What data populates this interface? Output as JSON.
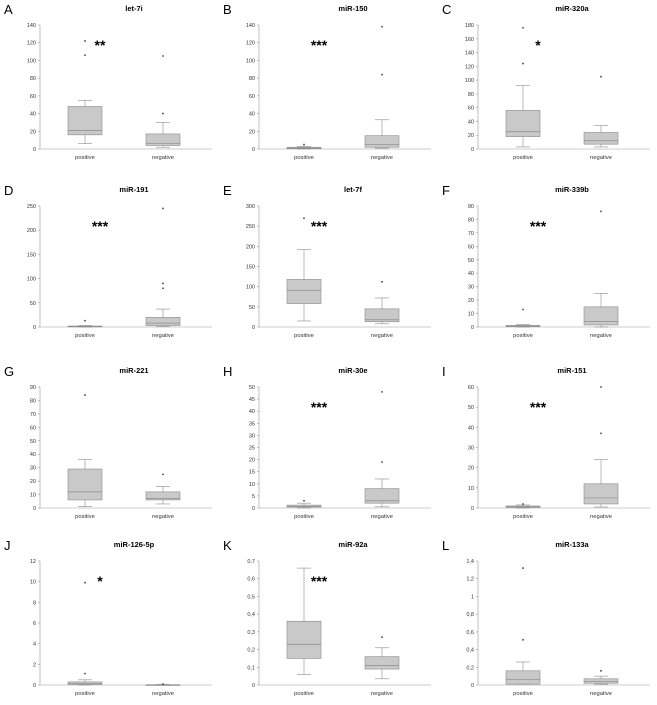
{
  "chart_data": [
    {
      "type": "box",
      "letter": "A",
      "title": "let-7i",
      "significance": "**",
      "categories": [
        "positive",
        "negative"
      ],
      "ylim": [
        0,
        140
      ],
      "yticks": [
        0,
        20,
        40,
        60,
        80,
        100,
        120,
        140
      ],
      "yticklabels": [
        "0",
        "20",
        "40",
        "60",
        "80",
        "100",
        "120",
        "140"
      ],
      "boxes": [
        {
          "name": "positive",
          "min": 6,
          "q1": 16,
          "median": 21,
          "q3": 48,
          "max": 55,
          "outliers": [
            106,
            122
          ]
        },
        {
          "name": "negative",
          "min": 2,
          "q1": 4,
          "median": 6,
          "q3": 17,
          "max": 30,
          "outliers": [
            40,
            105
          ]
        }
      ]
    },
    {
      "type": "box",
      "letter": "B",
      "title": "miR-150",
      "significance": "***",
      "categories": [
        "positive",
        "negative"
      ],
      "ylim": [
        0,
        140
      ],
      "yticks": [
        0,
        20,
        40,
        60,
        80,
        100,
        120,
        140
      ],
      "yticklabels": [
        "0",
        "20",
        "40",
        "60",
        "80",
        "100",
        "120",
        "140"
      ],
      "boxes": [
        {
          "name": "positive",
          "min": 0,
          "q1": 0.5,
          "median": 1,
          "q3": 2,
          "max": 3,
          "outliers": [
            5
          ]
        },
        {
          "name": "negative",
          "min": 1,
          "q1": 2,
          "median": 5,
          "q3": 15,
          "max": 33,
          "outliers": [
            84,
            138
          ]
        }
      ]
    },
    {
      "type": "box",
      "letter": "C",
      "title": "miR-320a",
      "significance": "*",
      "categories": [
        "positive",
        "negative"
      ],
      "ylim": [
        0,
        180
      ],
      "yticks": [
        0,
        20,
        40,
        60,
        80,
        100,
        120,
        140,
        160,
        180
      ],
      "yticklabels": [
        "0",
        "20",
        "40",
        "60",
        "80",
        "100",
        "120",
        "140",
        "160",
        "180"
      ],
      "boxes": [
        {
          "name": "positive",
          "min": 3,
          "q1": 18,
          "median": 25,
          "q3": 56,
          "max": 92,
          "outliers": [
            124,
            176
          ]
        },
        {
          "name": "negative",
          "min": 3,
          "q1": 7,
          "median": 12,
          "q3": 24,
          "max": 34,
          "outliers": [
            105
          ]
        }
      ]
    },
    {
      "type": "box",
      "letter": "D",
      "title": "miR-191",
      "significance": "***",
      "categories": [
        "positive",
        "negative"
      ],
      "ylim": [
        0,
        250
      ],
      "yticks": [
        0,
        50,
        100,
        150,
        200,
        250
      ],
      "yticklabels": [
        "0",
        "50",
        "100",
        "150",
        "200",
        "250"
      ],
      "boxes": [
        {
          "name": "positive",
          "min": 0,
          "q1": 0.5,
          "median": 1,
          "q3": 2,
          "max": 3,
          "outliers": [
            13
          ]
        },
        {
          "name": "negative",
          "min": 1,
          "q1": 3,
          "median": 8,
          "q3": 20,
          "max": 37,
          "outliers": [
            80,
            90,
            245
          ]
        }
      ]
    },
    {
      "type": "box",
      "letter": "E",
      "title": "let-7f",
      "significance": "***",
      "categories": [
        "positive",
        "negative"
      ],
      "ylim": [
        0,
        300
      ],
      "yticks": [
        0,
        50,
        100,
        150,
        200,
        250,
        300
      ],
      "yticklabels": [
        "0",
        "50",
        "100",
        "150",
        "200",
        "250",
        "300"
      ],
      "boxes": [
        {
          "name": "positive",
          "min": 15,
          "q1": 58,
          "median": 90,
          "q3": 118,
          "max": 192,
          "outliers": [
            270
          ]
        },
        {
          "name": "negative",
          "min": 8,
          "q1": 13,
          "median": 18,
          "q3": 45,
          "max": 72,
          "outliers": [
            112
          ]
        }
      ]
    },
    {
      "type": "box",
      "letter": "F",
      "title": "miR-339b",
      "significance": "***",
      "categories": [
        "positive",
        "negative"
      ],
      "ylim": [
        0,
        90
      ],
      "yticks": [
        0,
        10,
        20,
        30,
        40,
        50,
        60,
        70,
        80,
        90
      ],
      "yticklabels": [
        "0",
        "10",
        "20",
        "30",
        "40",
        "50",
        "60",
        "70",
        "80",
        "90"
      ],
      "boxes": [
        {
          "name": "positive",
          "min": 0,
          "q1": 0.3,
          "median": 0.7,
          "q3": 1.2,
          "max": 1.8,
          "outliers": [
            13
          ]
        },
        {
          "name": "negative",
          "min": 0,
          "q1": 1.5,
          "median": 4,
          "q3": 15,
          "max": 25,
          "outliers": [
            86
          ]
        }
      ]
    },
    {
      "type": "box",
      "letter": "G",
      "title": "miR-221",
      "significance": "",
      "categories": [
        "positive",
        "negative"
      ],
      "ylim": [
        0,
        90
      ],
      "yticks": [
        0,
        10,
        20,
        30,
        40,
        50,
        60,
        70,
        80,
        90
      ],
      "yticklabels": [
        "0",
        "10",
        "20",
        "30",
        "40",
        "50",
        "60",
        "70",
        "80",
        "90"
      ],
      "boxes": [
        {
          "name": "positive",
          "min": 1,
          "q1": 6,
          "median": 12,
          "q3": 29,
          "max": 36,
          "outliers": [
            84
          ]
        },
        {
          "name": "negative",
          "min": 3,
          "q1": 6,
          "median": 7,
          "q3": 12,
          "max": 16,
          "outliers": [
            25
          ]
        }
      ]
    },
    {
      "type": "box",
      "letter": "H",
      "title": "miR-30e",
      "significance": "***",
      "categories": [
        "positive",
        "negative"
      ],
      "ylim": [
        0,
        50
      ],
      "yticks": [
        0,
        5,
        10,
        15,
        20,
        25,
        30,
        35,
        40,
        45,
        50
      ],
      "yticklabels": [
        "0",
        "5",
        "10",
        "15",
        "20",
        "25",
        "30",
        "35",
        "40",
        "45",
        "50"
      ],
      "boxes": [
        {
          "name": "positive",
          "min": 0,
          "q1": 0.4,
          "median": 0.7,
          "q3": 1.2,
          "max": 2,
          "outliers": [
            3
          ]
        },
        {
          "name": "negative",
          "min": 0.5,
          "q1": 2,
          "median": 3,
          "q3": 8,
          "max": 12,
          "outliers": [
            19,
            48
          ]
        }
      ]
    },
    {
      "type": "box",
      "letter": "I",
      "title": "miR-151",
      "significance": "***",
      "categories": [
        "positive",
        "negative"
      ],
      "ylim": [
        0,
        60
      ],
      "yticks": [
        0,
        10,
        20,
        30,
        40,
        50,
        60
      ],
      "yticklabels": [
        "0",
        "10",
        "20",
        "30",
        "40",
        "50",
        "60"
      ],
      "boxes": [
        {
          "name": "positive",
          "min": 0,
          "q1": 0.3,
          "median": 0.6,
          "q3": 1,
          "max": 1.5,
          "outliers": [
            2
          ]
        },
        {
          "name": "negative",
          "min": 0.5,
          "q1": 2,
          "median": 5,
          "q3": 12,
          "max": 24,
          "outliers": [
            37,
            60
          ]
        }
      ]
    },
    {
      "type": "box",
      "letter": "J",
      "title": "miR-126-5p",
      "significance": "*",
      "categories": [
        "positive",
        "negative"
      ],
      "ylim": [
        0,
        12
      ],
      "yticks": [
        0,
        2,
        4,
        6,
        8,
        10,
        12
      ],
      "yticklabels": [
        "0",
        "2",
        "4",
        "6",
        "8",
        "10",
        "12"
      ],
      "boxes": [
        {
          "name": "positive",
          "min": 0,
          "q1": 0.05,
          "median": 0.15,
          "q3": 0.3,
          "max": 0.5,
          "outliers": [
            1.1,
            9.9
          ]
        },
        {
          "name": "negative",
          "min": 0,
          "q1": 0.01,
          "median": 0.02,
          "q3": 0.03,
          "max": 0.05,
          "outliers": [
            0.1
          ]
        }
      ]
    },
    {
      "type": "box",
      "letter": "K",
      "title": "miR-92a",
      "significance": "***",
      "categories": [
        "positive",
        "negative"
      ],
      "ylim": [
        0,
        0.7
      ],
      "yticks": [
        0,
        0.1,
        0.2,
        0.3,
        0.4,
        0.5,
        0.6,
        0.7
      ],
      "yticklabels": [
        "0",
        "0,1",
        "0,2",
        "0,3",
        "0,4",
        "0,5",
        "0,6",
        "0,7"
      ],
      "boxes": [
        {
          "name": "positive",
          "min": 0.06,
          "q1": 0.15,
          "median": 0.23,
          "q3": 0.36,
          "max": 0.66,
          "outliers": []
        },
        {
          "name": "negative",
          "min": 0.035,
          "q1": 0.09,
          "median": 0.11,
          "q3": 0.16,
          "max": 0.21,
          "outliers": [
            0.27
          ]
        }
      ]
    },
    {
      "type": "box",
      "letter": "L",
      "title": "miR-133a",
      "significance": "",
      "categories": [
        "positive",
        "negative"
      ],
      "ylim": [
        0,
        1.4
      ],
      "yticks": [
        0,
        0.2,
        0.4,
        0.6,
        0.8,
        1,
        1.2,
        1.4
      ],
      "yticklabels": [
        "0",
        "0,2",
        "0,4",
        "0,6",
        "0,8",
        "1",
        "1,2",
        "1,4"
      ],
      "boxes": [
        {
          "name": "positive",
          "min": 0.01,
          "q1": 0.01,
          "median": 0.06,
          "q3": 0.16,
          "max": 0.26,
          "outliers": [
            0.51,
            1.32
          ]
        },
        {
          "name": "negative",
          "min": 0.01,
          "q1": 0.02,
          "median": 0.04,
          "q3": 0.07,
          "max": 0.1,
          "outliers": [
            0.16
          ]
        }
      ]
    }
  ]
}
